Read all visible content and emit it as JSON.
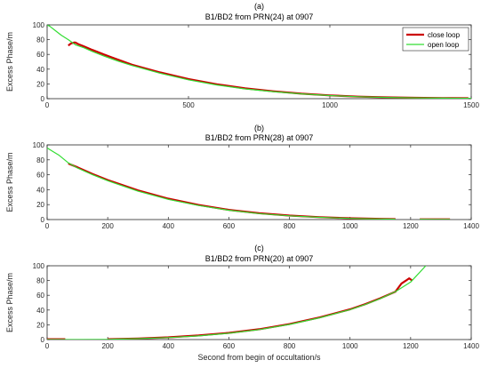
{
  "colors": {
    "close_loop": "#cc0000",
    "open_loop": "#33dd33",
    "axes": "#262626",
    "background": "#ffffff"
  },
  "chart_data": [
    {
      "type": "line",
      "panel_label": "(a)",
      "title": "B1/BD2 from PRN(24) at 0907",
      "ylabel": "Excess Phase/m",
      "xlabel": "",
      "xlim": [
        0,
        1500
      ],
      "ylim": [
        0,
        100
      ],
      "xticks": [
        "0",
        "500",
        "1000",
        "1500"
      ],
      "yticks": [
        "0",
        "20",
        "40",
        "60",
        "80",
        "100"
      ],
      "grid": false,
      "legend": {
        "placement": "top-right",
        "entries": [
          "close loop",
          "open loop"
        ]
      },
      "series": [
        {
          "name": "close loop",
          "color": "#cc0000",
          "width": 2.2,
          "x": [
            75,
            85,
            95,
            100,
            110,
            130,
            160,
            200,
            250,
            300,
            400,
            500,
            600,
            700,
            800,
            900,
            1000,
            1100,
            1200,
            1300,
            1400,
            1490
          ],
          "y": [
            72,
            75,
            76,
            76,
            74,
            71,
            66,
            60,
            53,
            46,
            35.5,
            26.5,
            19.5,
            14,
            10,
            6.8,
            4.4,
            2.8,
            1.8,
            1.2,
            0.8,
            0.6
          ]
        },
        {
          "name": "open loop",
          "color": "#33dd33",
          "width": 1.2,
          "x": [
            0,
            10,
            30,
            50,
            75,
            100,
            130,
            160,
            200,
            250,
            300,
            400,
            500,
            600,
            700,
            800,
            900,
            1000,
            1100,
            1200,
            1300,
            1400,
            1500
          ],
          "y": [
            100,
            98,
            92,
            86,
            80,
            73,
            69,
            64,
            58,
            51,
            45,
            34.5,
            25.5,
            18.5,
            13.3,
            9.5,
            6.5,
            4.2,
            2.7,
            1.7,
            1.1,
            0.7,
            0.5
          ]
        }
      ]
    },
    {
      "type": "line",
      "panel_label": "(b)",
      "title": "B1/BD2 from PRN(28) at 0907",
      "ylabel": "Excess Phase/m",
      "xlabel": "",
      "xlim": [
        0,
        1400
      ],
      "ylim": [
        0,
        100
      ],
      "xticks": [
        "0",
        "200",
        "400",
        "600",
        "800",
        "1000",
        "1200",
        "1400"
      ],
      "yticks": [
        "0",
        "20",
        "40",
        "60",
        "80",
        "100"
      ],
      "grid": false,
      "series": [
        {
          "name": "close loop",
          "color": "#cc0000",
          "width": 2.2,
          "x": [
            70,
            100,
            150,
            200,
            300,
            400,
            500,
            600,
            700,
            800,
            900,
            1000,
            1050,
            1100,
            1150,
            null,
            1230,
            1280,
            1330
          ],
          "y": [
            75,
            70,
            61,
            53,
            39,
            28,
            19.5,
            13,
            8.5,
            5.3,
            3.2,
            1.8,
            1.3,
            0.9,
            0.6,
            null,
            0.4,
            0.3,
            0.3
          ]
        },
        {
          "name": "open loop",
          "color": "#33dd33",
          "width": 1.2,
          "x": [
            0,
            20,
            40,
            70,
            100,
            150,
            200,
            300,
            400,
            500,
            600,
            700,
            800,
            900,
            1000,
            1050,
            1100,
            1150,
            null,
            1230,
            1280,
            1330
          ],
          "y": [
            96,
            91,
            86,
            76,
            69,
            60,
            52,
            38,
            27,
            18.8,
            12.5,
            8,
            5,
            3,
            1.6,
            1.1,
            0.8,
            0.5,
            null,
            0.3,
            0.2,
            0.2
          ]
        }
      ]
    },
    {
      "type": "line",
      "panel_label": "(c)",
      "title": "B1/BD2 from PRN(20) at 0907",
      "ylabel": "Excess Phase/m",
      "xlabel": "Second from begin of occultation/s",
      "xlim": [
        0,
        1400
      ],
      "ylim": [
        0,
        100
      ],
      "xticks": [
        "0",
        "200",
        "400",
        "600",
        "800",
        "1000",
        "1200",
        "1400"
      ],
      "yticks": [
        "0",
        "20",
        "40",
        "60",
        "80",
        "100"
      ],
      "grid": false,
      "series": [
        {
          "name": "close loop",
          "color": "#cc0000",
          "width": 2.2,
          "x": [
            0,
            60,
            null,
            200,
            300,
            400,
            500,
            600,
            700,
            800,
            900,
            1000,
            1050,
            1100,
            1150,
            1170,
            1185,
            1195,
            1205
          ],
          "y": [
            0.5,
            0.5,
            null,
            0.5,
            1.5,
            3,
            5.5,
            9,
            14,
            21,
            30,
            41,
            48,
            56,
            65,
            76,
            80,
            83,
            80
          ]
        },
        {
          "name": "open loop",
          "color": "#33dd33",
          "width": 1.2,
          "x": [
            0,
            60,
            100,
            200,
            300,
            400,
            500,
            600,
            700,
            800,
            900,
            1000,
            1050,
            1100,
            1150,
            1200,
            1250
          ],
          "y": [
            0,
            0,
            0,
            0.2,
            1.2,
            2.6,
            5,
            8.5,
            13.5,
            20.5,
            29.5,
            40.5,
            47.5,
            55.5,
            65,
            78,
            100
          ]
        }
      ]
    }
  ]
}
